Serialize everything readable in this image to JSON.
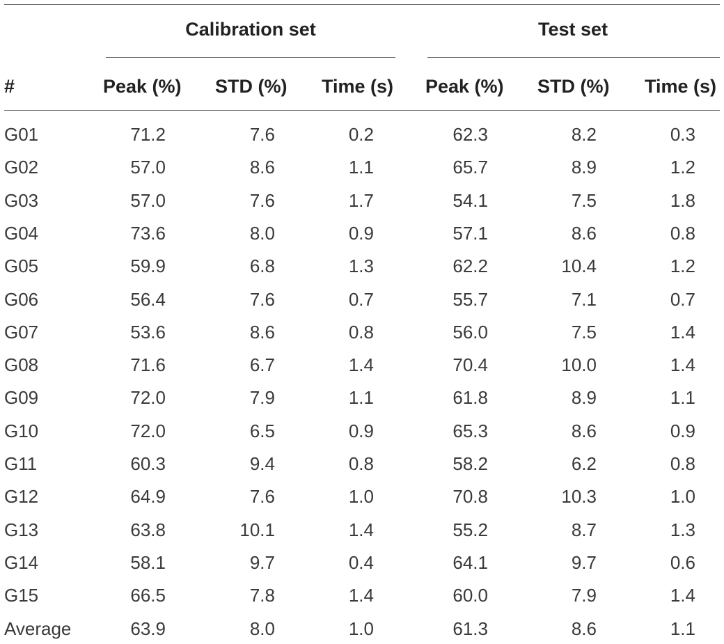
{
  "table": {
    "group_headers": {
      "calibration": "Calibration set",
      "test": "Test set"
    },
    "columns": [
      "#",
      "Peak (%)",
      "STD (%)",
      "Time (s)",
      "Peak (%)",
      "STD (%)",
      "Time (s)"
    ],
    "rows": [
      {
        "id": "G01",
        "cal_peak": "71.2",
        "cal_std": "7.6",
        "cal_time": "0.2",
        "test_peak": "62.3",
        "test_std": "8.2",
        "test_time": "0.3"
      },
      {
        "id": "G02",
        "cal_peak": "57.0",
        "cal_std": "8.6",
        "cal_time": "1.1",
        "test_peak": "65.7",
        "test_std": "8.9",
        "test_time": "1.2"
      },
      {
        "id": "G03",
        "cal_peak": "57.0",
        "cal_std": "7.6",
        "cal_time": "1.7",
        "test_peak": "54.1",
        "test_std": "7.5",
        "test_time": "1.8"
      },
      {
        "id": "G04",
        "cal_peak": "73.6",
        "cal_std": "8.0",
        "cal_time": "0.9",
        "test_peak": "57.1",
        "test_std": "8.6",
        "test_time": "0.8"
      },
      {
        "id": "G05",
        "cal_peak": "59.9",
        "cal_std": "6.8",
        "cal_time": "1.3",
        "test_peak": "62.2",
        "test_std": "10.4",
        "test_time": "1.2"
      },
      {
        "id": "G06",
        "cal_peak": "56.4",
        "cal_std": "7.6",
        "cal_time": "0.7",
        "test_peak": "55.7",
        "test_std": "7.1",
        "test_time": "0.7"
      },
      {
        "id": "G07",
        "cal_peak": "53.6",
        "cal_std": "8.6",
        "cal_time": "0.8",
        "test_peak": "56.0",
        "test_std": "7.5",
        "test_time": "1.4"
      },
      {
        "id": "G08",
        "cal_peak": "71.6",
        "cal_std": "6.7",
        "cal_time": "1.4",
        "test_peak": "70.4",
        "test_std": "10.0",
        "test_time": "1.4"
      },
      {
        "id": "G09",
        "cal_peak": "72.0",
        "cal_std": "7.9",
        "cal_time": "1.1",
        "test_peak": "61.8",
        "test_std": "8.9",
        "test_time": "1.1"
      },
      {
        "id": "G10",
        "cal_peak": "72.0",
        "cal_std": "6.5",
        "cal_time": "0.9",
        "test_peak": "65.3",
        "test_std": "8.6",
        "test_time": "0.9"
      },
      {
        "id": "G11",
        "cal_peak": "60.3",
        "cal_std": "9.4",
        "cal_time": "0.8",
        "test_peak": "58.2",
        "test_std": "6.2",
        "test_time": "0.8"
      },
      {
        "id": "G12",
        "cal_peak": "64.9",
        "cal_std": "7.6",
        "cal_time": "1.0",
        "test_peak": "70.8",
        "test_std": "10.3",
        "test_time": "1.0"
      },
      {
        "id": "G13",
        "cal_peak": "63.8",
        "cal_std": "10.1",
        "cal_time": "1.4",
        "test_peak": "55.2",
        "test_std": "8.7",
        "test_time": "1.3"
      },
      {
        "id": "G14",
        "cal_peak": "58.1",
        "cal_std": "9.7",
        "cal_time": "0.4",
        "test_peak": "64.1",
        "test_std": "9.7",
        "test_time": "0.6"
      },
      {
        "id": "G15",
        "cal_peak": "66.5",
        "cal_std": "7.8",
        "cal_time": "1.4",
        "test_peak": "60.0",
        "test_std": "7.9",
        "test_time": "1.4"
      },
      {
        "id": "Average",
        "cal_peak": "63.9",
        "cal_std": "8.0",
        "cal_time": "1.0",
        "test_peak": "61.3",
        "test_std": "8.6",
        "test_time": "1.1"
      }
    ]
  }
}
